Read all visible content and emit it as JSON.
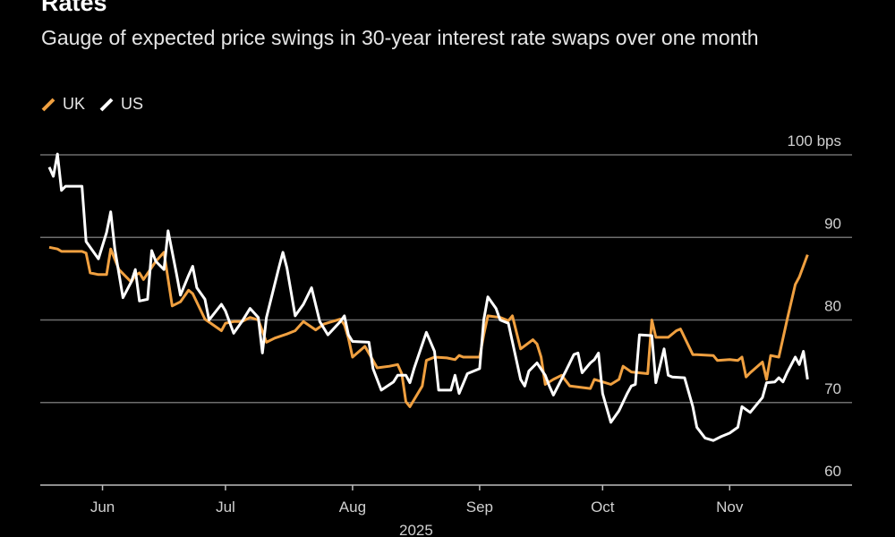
{
  "chart_data": {
    "type": "line",
    "title": "Rates",
    "subtitle": "Gauge of expected price swings in 30-year interest rate swaps over one month",
    "unit": "bps",
    "ylim": [
      60,
      100
    ],
    "yticks": [
      60,
      70,
      80,
      90,
      100
    ],
    "ytick_labels": [
      "60",
      "70",
      "80",
      "90",
      "100 bps"
    ],
    "xticks": [
      {
        "date": "2025-06-01",
        "label": "Jun"
      },
      {
        "date": "2025-07-01",
        "label": "Jul"
      },
      {
        "date": "2025-08-01",
        "label": "Aug"
      },
      {
        "date": "2025-09-01",
        "label": "Sep"
      },
      {
        "date": "2025-10-01",
        "label": "Oct"
      },
      {
        "date": "2025-11-01",
        "label": "Nov"
      }
    ],
    "xlabel": "2025",
    "grid": true,
    "legend_position": "top-left",
    "series": [
      {
        "name": "UK",
        "color": "#f0a040",
        "points": [
          [
            "2025-05-19",
            88.8
          ],
          [
            "2025-05-21",
            88.6
          ],
          [
            "2025-05-22",
            88.3
          ],
          [
            "2025-05-27",
            88.3
          ],
          [
            "2025-05-28",
            88.1
          ],
          [
            "2025-05-29",
            85.7
          ],
          [
            "2025-05-31",
            85.5
          ],
          [
            "2025-06-02",
            85.5
          ],
          [
            "2025-06-03",
            88.6
          ],
          [
            "2025-06-05",
            86.1
          ],
          [
            "2025-06-08",
            84.6
          ],
          [
            "2025-06-09",
            85.4
          ],
          [
            "2025-06-10",
            85.7
          ],
          [
            "2025-06-11",
            84.9
          ],
          [
            "2025-06-14",
            87.1
          ],
          [
            "2025-06-16",
            88.2
          ],
          [
            "2025-06-18",
            81.7
          ],
          [
            "2025-06-20",
            82.2
          ],
          [
            "2025-06-22",
            83.6
          ],
          [
            "2025-06-23",
            83.2
          ],
          [
            "2025-06-26",
            80.1
          ],
          [
            "2025-06-30",
            78.7
          ],
          [
            "2025-07-01",
            79.6
          ],
          [
            "2025-07-03",
            79.8
          ],
          [
            "2025-07-05",
            79.8
          ],
          [
            "2025-07-07",
            80.3
          ],
          [
            "2025-07-09",
            80.0
          ],
          [
            "2025-07-11",
            77.3
          ],
          [
            "2025-07-13",
            77.8
          ],
          [
            "2025-07-16",
            78.3
          ],
          [
            "2025-07-18",
            78.7
          ],
          [
            "2025-07-20",
            79.8
          ],
          [
            "2025-07-23",
            78.8
          ],
          [
            "2025-07-25",
            79.5
          ],
          [
            "2025-07-29",
            80.1
          ],
          [
            "2025-07-30",
            79.4
          ],
          [
            "2025-07-31",
            77.8
          ],
          [
            "2025-08-01",
            75.5
          ],
          [
            "2025-08-04",
            76.8
          ],
          [
            "2025-08-06",
            75.1
          ],
          [
            "2025-08-07",
            74.2
          ],
          [
            "2025-08-10",
            74.4
          ],
          [
            "2025-08-12",
            74.6
          ],
          [
            "2025-08-13",
            73.5
          ],
          [
            "2025-08-14",
            70.1
          ],
          [
            "2025-08-15",
            69.5
          ],
          [
            "2025-08-18",
            72.0
          ],
          [
            "2025-08-19",
            75.1
          ],
          [
            "2025-08-21",
            75.5
          ],
          [
            "2025-08-24",
            75.4
          ],
          [
            "2025-08-26",
            75.2
          ],
          [
            "2025-08-27",
            75.7
          ],
          [
            "2025-08-28",
            75.5
          ],
          [
            "2025-09-01",
            75.5
          ],
          [
            "2025-09-02",
            78.2
          ],
          [
            "2025-09-03",
            80.5
          ],
          [
            "2025-09-06",
            80.3
          ],
          [
            "2025-09-08",
            79.9
          ],
          [
            "2025-09-09",
            80.5
          ],
          [
            "2025-09-11",
            76.5
          ],
          [
            "2025-09-14",
            77.6
          ],
          [
            "2025-09-15",
            77.1
          ],
          [
            "2025-09-16",
            75.5
          ],
          [
            "2025-09-17",
            72.2
          ],
          [
            "2025-09-19",
            72.8
          ],
          [
            "2025-09-21",
            73.3
          ],
          [
            "2025-09-23",
            72.0
          ],
          [
            "2025-09-28",
            71.7
          ],
          [
            "2025-09-29",
            72.8
          ],
          [
            "2025-10-01",
            72.5
          ],
          [
            "2025-10-03",
            72.2
          ],
          [
            "2025-10-05",
            72.8
          ],
          [
            "2025-10-06",
            74.4
          ],
          [
            "2025-10-08",
            73.7
          ],
          [
            "2025-10-12",
            73.5
          ],
          [
            "2025-10-13",
            80.0
          ],
          [
            "2025-10-14",
            77.9
          ],
          [
            "2025-10-17",
            77.9
          ],
          [
            "2025-10-19",
            78.7
          ],
          [
            "2025-10-20",
            78.9
          ],
          [
            "2025-10-23",
            75.8
          ],
          [
            "2025-10-24",
            75.8
          ],
          [
            "2025-10-28",
            75.7
          ],
          [
            "2025-10-29",
            75.1
          ],
          [
            "2025-11-01",
            75.2
          ],
          [
            "2025-11-03",
            75.1
          ],
          [
            "2025-11-04",
            75.5
          ],
          [
            "2025-11-05",
            73.1
          ],
          [
            "2025-11-06",
            73.6
          ],
          [
            "2025-11-09",
            74.9
          ],
          [
            "2025-11-10",
            72.8
          ],
          [
            "2025-11-11",
            75.7
          ],
          [
            "2025-11-13",
            75.5
          ],
          [
            "2025-11-15",
            80.0
          ],
          [
            "2025-11-17",
            84.3
          ],
          [
            "2025-11-18",
            85.2
          ],
          [
            "2025-11-20",
            87.9
          ]
        ]
      },
      {
        "name": "US",
        "color": "#ffffff",
        "points": [
          [
            "2025-05-19",
            98.5
          ],
          [
            "2025-05-20",
            97.4
          ],
          [
            "2025-05-21",
            100.1
          ],
          [
            "2025-05-22",
            95.7
          ],
          [
            "2025-05-23",
            96.2
          ],
          [
            "2025-05-27",
            96.2
          ],
          [
            "2025-05-28",
            89.5
          ],
          [
            "2025-05-31",
            87.4
          ],
          [
            "2025-06-02",
            90.6
          ],
          [
            "2025-06-03",
            93.1
          ],
          [
            "2025-06-04",
            88.6
          ],
          [
            "2025-06-06",
            82.7
          ],
          [
            "2025-06-08",
            84.6
          ],
          [
            "2025-06-09",
            86.1
          ],
          [
            "2025-06-10",
            82.3
          ],
          [
            "2025-06-12",
            82.5
          ],
          [
            "2025-06-13",
            88.4
          ],
          [
            "2025-06-14",
            87.1
          ],
          [
            "2025-06-16",
            86.1
          ],
          [
            "2025-06-17",
            90.8
          ],
          [
            "2025-06-19",
            85.7
          ],
          [
            "2025-06-20",
            83.0
          ],
          [
            "2025-06-22",
            85.4
          ],
          [
            "2025-06-23",
            86.5
          ],
          [
            "2025-06-24",
            83.9
          ],
          [
            "2025-06-26",
            82.5
          ],
          [
            "2025-06-27",
            80.0
          ],
          [
            "2025-06-30",
            81.9
          ],
          [
            "2025-07-01",
            81.1
          ],
          [
            "2025-07-03",
            78.4
          ],
          [
            "2025-07-05",
            79.8
          ],
          [
            "2025-07-07",
            81.4
          ],
          [
            "2025-07-09",
            80.3
          ],
          [
            "2025-07-10",
            76.0
          ],
          [
            "2025-07-11",
            80.3
          ],
          [
            "2025-07-14",
            86.3
          ],
          [
            "2025-07-15",
            88.2
          ],
          [
            "2025-07-16",
            86.3
          ],
          [
            "2025-07-18",
            80.5
          ],
          [
            "2025-07-20",
            81.9
          ],
          [
            "2025-07-22",
            83.9
          ],
          [
            "2025-07-24",
            79.8
          ],
          [
            "2025-07-26",
            78.2
          ],
          [
            "2025-07-29",
            79.8
          ],
          [
            "2025-07-30",
            80.5
          ],
          [
            "2025-07-31",
            78.2
          ],
          [
            "2025-08-01",
            77.4
          ],
          [
            "2025-08-05",
            77.3
          ],
          [
            "2025-08-06",
            74.1
          ],
          [
            "2025-08-08",
            71.5
          ],
          [
            "2025-08-11",
            72.5
          ],
          [
            "2025-08-12",
            73.3
          ],
          [
            "2025-08-14",
            73.3
          ],
          [
            "2025-08-15",
            72.4
          ],
          [
            "2025-08-16",
            74.1
          ],
          [
            "2025-08-19",
            78.5
          ],
          [
            "2025-08-21",
            76.2
          ],
          [
            "2025-08-22",
            71.5
          ],
          [
            "2025-08-25",
            71.5
          ],
          [
            "2025-08-26",
            73.3
          ],
          [
            "2025-08-27",
            71.1
          ],
          [
            "2025-08-29",
            73.5
          ],
          [
            "2025-09-01",
            74.1
          ],
          [
            "2025-09-02",
            80.0
          ],
          [
            "2025-09-03",
            82.8
          ],
          [
            "2025-09-05",
            81.4
          ],
          [
            "2025-09-06",
            80.0
          ],
          [
            "2025-09-08",
            79.6
          ],
          [
            "2025-09-11",
            72.8
          ],
          [
            "2025-09-12",
            72.0
          ],
          [
            "2025-09-13",
            73.8
          ],
          [
            "2025-09-15",
            74.8
          ],
          [
            "2025-09-17",
            73.3
          ],
          [
            "2025-09-18",
            72.0
          ],
          [
            "2025-09-19",
            70.9
          ],
          [
            "2025-09-22",
            73.8
          ],
          [
            "2025-09-24",
            75.8
          ],
          [
            "2025-09-25",
            76.0
          ],
          [
            "2025-09-26",
            73.6
          ],
          [
            "2025-09-28",
            74.8
          ],
          [
            "2025-09-29",
            75.2
          ],
          [
            "2025-09-30",
            76.0
          ],
          [
            "2025-10-01",
            71.1
          ],
          [
            "2025-10-03",
            67.6
          ],
          [
            "2025-10-05",
            69.0
          ],
          [
            "2025-10-07",
            71.1
          ],
          [
            "2025-10-08",
            72.0
          ],
          [
            "2025-10-09",
            72.2
          ],
          [
            "2025-10-10",
            78.2
          ],
          [
            "2025-10-13",
            78.1
          ],
          [
            "2025-10-14",
            72.4
          ],
          [
            "2025-10-16",
            76.5
          ],
          [
            "2025-10-17",
            73.3
          ],
          [
            "2025-10-18",
            73.1
          ],
          [
            "2025-10-21",
            73.0
          ],
          [
            "2025-10-23",
            69.5
          ],
          [
            "2025-10-24",
            67.0
          ],
          [
            "2025-10-26",
            65.7
          ],
          [
            "2025-10-28",
            65.4
          ],
          [
            "2025-10-30",
            65.9
          ],
          [
            "2025-11-01",
            66.3
          ],
          [
            "2025-11-03",
            67.0
          ],
          [
            "2025-11-04",
            69.5
          ],
          [
            "2025-11-06",
            68.8
          ],
          [
            "2025-11-09",
            70.6
          ],
          [
            "2025-11-10",
            72.4
          ],
          [
            "2025-11-12",
            72.5
          ],
          [
            "2025-11-13",
            73.0
          ],
          [
            "2025-11-14",
            72.5
          ],
          [
            "2025-11-15",
            73.6
          ],
          [
            "2025-11-17",
            75.5
          ],
          [
            "2025-11-18",
            74.6
          ],
          [
            "2025-11-19",
            76.2
          ],
          [
            "2025-11-20",
            72.8
          ]
        ]
      }
    ]
  }
}
